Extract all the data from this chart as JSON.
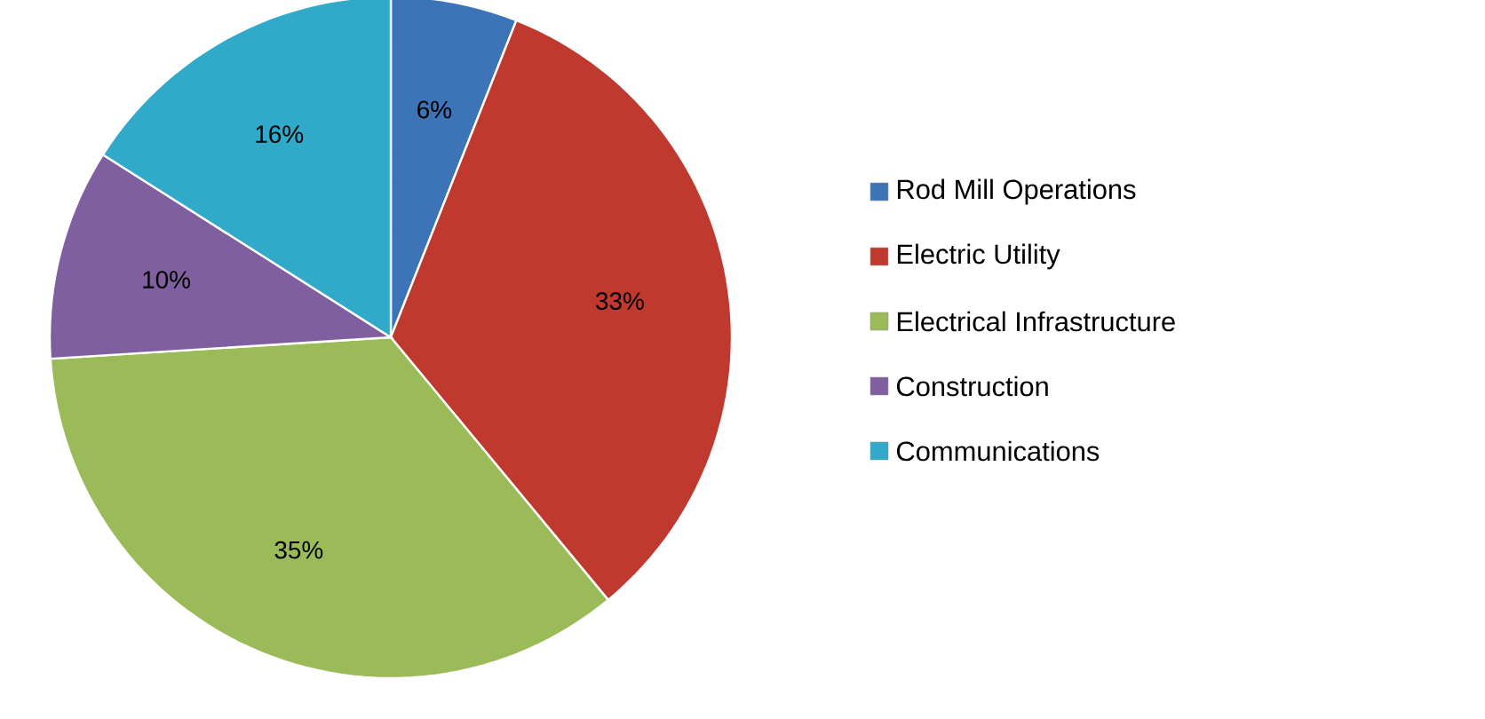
{
  "chart_data": {
    "type": "pie",
    "categories": [
      "Rod Mill Operations",
      "Electric Utility",
      "Electrical Infrastructure",
      "Construction",
      "Communications"
    ],
    "values": [
      6,
      33,
      35,
      10,
      16
    ],
    "colors": [
      "#3d74b8",
      "#c0392f",
      "#9bbb59",
      "#7f5fa0",
      "#31a9c8"
    ],
    "value_labels": [
      "6%",
      "33%",
      "35%",
      "10%",
      "16%"
    ],
    "legend": "right"
  }
}
